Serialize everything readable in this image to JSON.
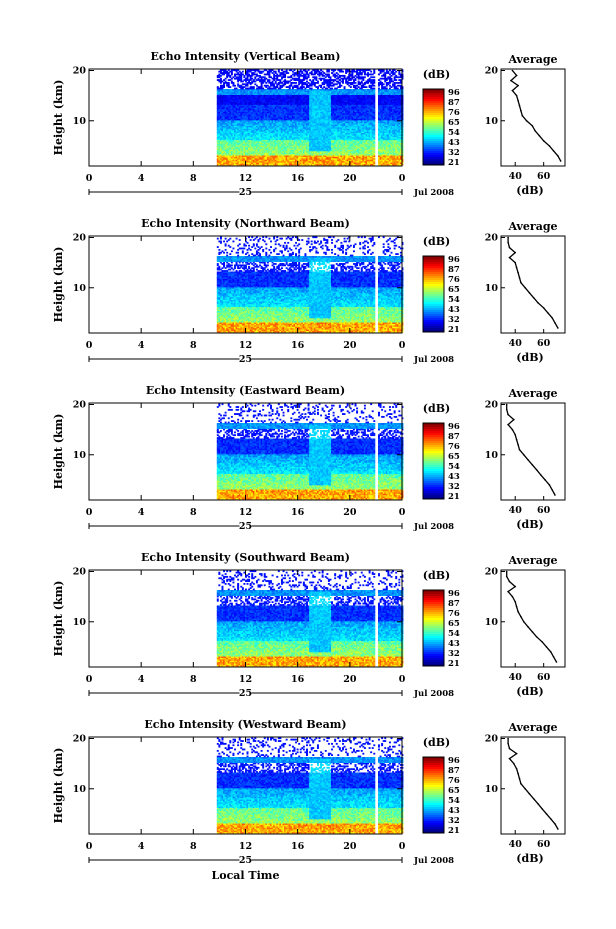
{
  "chart_data": [
    {
      "type": "heatmap",
      "title": "Echo Intensity (Vertical Beam)",
      "ylabel": "Height (km)",
      "date_label": "Jul 2008",
      "day_label": "25",
      "x_ticks": [
        "0",
        "4",
        "8",
        "12",
        "16",
        "20",
        "0"
      ],
      "y_ticks": [
        "20",
        "10"
      ],
      "colorbar": {
        "unit": "(dB)",
        "ticks": [
          "96",
          "87",
          "76",
          "65",
          "54",
          "43",
          "32",
          "21"
        ],
        "range": [
          21,
          96
        ]
      },
      "profile": {
        "title": "Average",
        "xlabel": "(dB)",
        "x_ticks": [
          "40",
          "60"
        ],
        "y_ticks": [
          "20",
          "10"
        ],
        "heights": [
          2,
          3,
          4,
          5,
          6,
          7,
          8,
          9,
          10,
          11,
          12,
          13,
          14,
          15,
          16,
          17,
          18,
          19,
          20
        ],
        "values": [
          72,
          70,
          67,
          64,
          60,
          57,
          54,
          52,
          48,
          45,
          44,
          43,
          42,
          41,
          38,
          42,
          37,
          41,
          38
        ]
      }
    },
    {
      "type": "heatmap",
      "title": "Echo Intensity (Northward Beam)",
      "ylabel": "Height (km)",
      "date_label": "Jul 2008",
      "day_label": "25",
      "x_ticks": [
        "0",
        "4",
        "8",
        "12",
        "16",
        "20",
        "0"
      ],
      "y_ticks": [
        "20",
        "10"
      ],
      "colorbar": {
        "unit": "(dB)",
        "ticks": [
          "96",
          "87",
          "76",
          "65",
          "54",
          "43",
          "32",
          "21"
        ],
        "range": [
          21,
          96
        ]
      },
      "profile": {
        "title": "Average",
        "xlabel": "(dB)",
        "x_ticks": [
          "40",
          "60"
        ],
        "y_ticks": [
          "20",
          "10"
        ],
        "heights": [
          2,
          3,
          4,
          5,
          6,
          7,
          8,
          9,
          10,
          11,
          12,
          13,
          14,
          15,
          16,
          17,
          18,
          19,
          20
        ],
        "values": [
          70,
          68,
          66,
          63,
          60,
          56,
          53,
          50,
          47,
          44,
          43,
          42,
          41,
          40,
          36,
          40,
          36,
          35,
          35
        ]
      }
    },
    {
      "type": "heatmap",
      "title": "Echo Intensity (Eastward Beam)",
      "ylabel": "Height (km)",
      "date_label": "Jul 2008",
      "day_label": "25",
      "x_ticks": [
        "0",
        "4",
        "8",
        "12",
        "16",
        "20",
        "0"
      ],
      "y_ticks": [
        "20",
        "10"
      ],
      "colorbar": {
        "unit": "(dB)",
        "ticks": [
          "96",
          "87",
          "76",
          "65",
          "54",
          "43",
          "32",
          "21"
        ],
        "range": [
          21,
          96
        ]
      },
      "profile": {
        "title": "Average",
        "xlabel": "(dB)",
        "x_ticks": [
          "40",
          "60"
        ],
        "y_ticks": [
          "20",
          "10"
        ],
        "heights": [
          2,
          3,
          4,
          5,
          6,
          7,
          8,
          9,
          10,
          11,
          12,
          13,
          14,
          15,
          16,
          17,
          18,
          19,
          20
        ],
        "values": [
          68,
          66,
          64,
          61,
          58,
          55,
          52,
          49,
          46,
          43,
          42,
          41,
          40,
          38,
          35,
          39,
          35,
          34,
          34
        ]
      }
    },
    {
      "type": "heatmap",
      "title": "Echo Intensity (Southward Beam)",
      "ylabel": "Height (km)",
      "date_label": "Jul 2008",
      "day_label": "25",
      "x_ticks": [
        "0",
        "4",
        "8",
        "12",
        "16",
        "20",
        "0"
      ],
      "y_ticks": [
        "20",
        "10"
      ],
      "colorbar": {
        "unit": "(dB)",
        "ticks": [
          "96",
          "87",
          "76",
          "65",
          "54",
          "43",
          "32",
          "21"
        ],
        "range": [
          21,
          96
        ]
      },
      "profile": {
        "title": "Average",
        "xlabel": "(dB)",
        "x_ticks": [
          "40",
          "60"
        ],
        "y_ticks": [
          "20",
          "10"
        ],
        "heights": [
          2,
          3,
          4,
          5,
          6,
          7,
          8,
          9,
          10,
          11,
          12,
          13,
          14,
          15,
          16,
          17,
          18,
          19,
          20
        ],
        "values": [
          69,
          67,
          65,
          62,
          59,
          55,
          52,
          49,
          46,
          44,
          42,
          41,
          40,
          38,
          35,
          40,
          36,
          34,
          34
        ]
      }
    },
    {
      "type": "heatmap",
      "title": "Echo Intensity (Westward Beam)",
      "ylabel": "Height (km)",
      "date_label": "Jul 2008",
      "day_label": "25",
      "x_ticks": [
        "0",
        "4",
        "8",
        "12",
        "16",
        "20",
        "0"
      ],
      "y_ticks": [
        "20",
        "10"
      ],
      "colorbar": {
        "unit": "(dB)",
        "ticks": [
          "96",
          "87",
          "76",
          "65",
          "54",
          "43",
          "32",
          "21"
        ],
        "range": [
          21,
          96
        ]
      },
      "profile": {
        "title": "Average",
        "xlabel": "(dB)",
        "x_ticks": [
          "40",
          "60"
        ],
        "y_ticks": [
          "20",
          "10"
        ],
        "heights": [
          2,
          3,
          4,
          5,
          6,
          7,
          8,
          9,
          10,
          11,
          12,
          13,
          14,
          15,
          16,
          17,
          18,
          19,
          20
        ],
        "values": [
          70,
          68,
          65,
          62,
          59,
          56,
          53,
          50,
          47,
          44,
          43,
          42,
          41,
          39,
          36,
          41,
          36,
          35,
          35
        ]
      }
    }
  ],
  "xlabel": "Local Time"
}
